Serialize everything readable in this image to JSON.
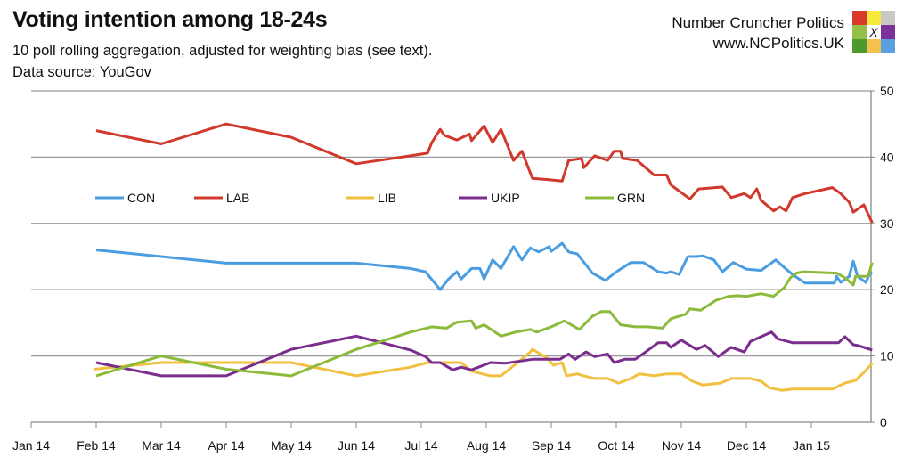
{
  "header": {
    "title": "Voting intention among 18-24s",
    "subtitle": "10 poll rolling aggregation, adjusted for weighting bias (see text).",
    "source": "Data source: YouGov",
    "brand_name": "Number Cruncher Politics",
    "brand_url": "www.NCPolitics.UK",
    "logo_mark": "X",
    "logo_colors": [
      "#d8392b",
      "#f5ea3a",
      "#c8c8c8",
      "#94c047",
      "#ffffff",
      "#7a3199",
      "#4b9a2e",
      "#f2c14e",
      "#5aa0e0"
    ]
  },
  "chart_data": {
    "type": "line",
    "title": "Voting intention among 18-24s",
    "xlabel": "",
    "ylabel": "",
    "ylim": [
      0,
      50
    ],
    "yticks": [
      0,
      10,
      20,
      30,
      40,
      50
    ],
    "y_axis_side": "right",
    "xticks": [
      "Jan 14",
      "Feb 14",
      "Mar 14",
      "Apr 14",
      "May 14",
      "Jun 14",
      "Jul 14",
      "Aug 14",
      "Sep 14",
      "Oct 14",
      "Nov 14",
      "Dec 14",
      "Jan 15"
    ],
    "xlim": [
      "2014-01-01",
      "2015-01-31"
    ],
    "grid": true,
    "legend_position": "upper-middle",
    "series": [
      {
        "name": "CON",
        "color": "#4a9de0",
        "points": [
          [
            "2014-02-01",
            26
          ],
          [
            "2014-03-01",
            25
          ],
          [
            "2014-04-01",
            24
          ],
          [
            "2014-05-01",
            24
          ],
          [
            "2014-06-01",
            24
          ],
          [
            "2014-06-26",
            23.2
          ],
          [
            "2014-07-03",
            22.7
          ],
          [
            "2014-07-10",
            20.0
          ],
          [
            "2014-07-14",
            21.6
          ],
          [
            "2014-07-18",
            22.7
          ],
          [
            "2014-07-20",
            21.6
          ],
          [
            "2014-07-25",
            23.2
          ],
          [
            "2014-07-29",
            23.2
          ],
          [
            "2014-07-31",
            21.6
          ],
          [
            "2014-08-04",
            24.5
          ],
          [
            "2014-08-08",
            23.2
          ],
          [
            "2014-08-14",
            26.5
          ],
          [
            "2014-08-18",
            24.5
          ],
          [
            "2014-08-22",
            26.3
          ],
          [
            "2014-08-26",
            25.7
          ],
          [
            "2014-08-31",
            26.5
          ],
          [
            "2014-09-01",
            25.8
          ],
          [
            "2014-09-06",
            27.0
          ],
          [
            "2014-09-09",
            25.7
          ],
          [
            "2014-09-13",
            25.4
          ],
          [
            "2014-09-20",
            22.5
          ],
          [
            "2014-09-26",
            21.4
          ],
          [
            "2014-10-01",
            22.7
          ],
          [
            "2014-10-08",
            24.1
          ],
          [
            "2014-10-14",
            24.1
          ],
          [
            "2014-10-21",
            22.7
          ],
          [
            "2014-10-25",
            22.5
          ],
          [
            "2014-10-27",
            22.7
          ],
          [
            "2014-10-31",
            22.3
          ],
          [
            "2014-11-04",
            25.0
          ],
          [
            "2014-11-08",
            25.0
          ],
          [
            "2014-11-11",
            25.1
          ],
          [
            "2014-11-16",
            24.5
          ],
          [
            "2014-11-20",
            22.7
          ],
          [
            "2014-11-25",
            24.1
          ],
          [
            "2014-12-01",
            23.1
          ],
          [
            "2014-12-08",
            22.9
          ],
          [
            "2014-12-15",
            24.5
          ],
          [
            "2014-12-20",
            23.1
          ],
          [
            "2014-12-23",
            22.3
          ],
          [
            "2014-12-29",
            21.0
          ],
          [
            "2015-01-12",
            21.0
          ],
          [
            "2015-01-13",
            22.0
          ],
          [
            "2015-01-15",
            21.1
          ],
          [
            "2015-01-19",
            22.0
          ],
          [
            "2015-01-21",
            24.3
          ],
          [
            "2015-01-23",
            22.0
          ],
          [
            "2015-01-27",
            21.1
          ],
          [
            "2015-01-29",
            22.5
          ],
          [
            "2015-01-30",
            22.5
          ]
        ]
      },
      {
        "name": "LAB",
        "color": "#d0392b",
        "points": [
          [
            "2014-02-01",
            44
          ],
          [
            "2014-03-01",
            42
          ],
          [
            "2014-04-01",
            45
          ],
          [
            "2014-05-01",
            43
          ],
          [
            "2014-06-01",
            39
          ],
          [
            "2014-06-26",
            40.2
          ],
          [
            "2014-07-04",
            40.6
          ],
          [
            "2014-07-06",
            42.2
          ],
          [
            "2014-07-10",
            44.2
          ],
          [
            "2014-07-12",
            43.3
          ],
          [
            "2014-07-18",
            42.6
          ],
          [
            "2014-07-24",
            43.5
          ],
          [
            "2014-07-25",
            42.5
          ],
          [
            "2014-07-31",
            44.7
          ],
          [
            "2014-08-04",
            42.2
          ],
          [
            "2014-08-08",
            44.2
          ],
          [
            "2014-08-14",
            39.5
          ],
          [
            "2014-08-18",
            40.9
          ],
          [
            "2014-08-23",
            36.8
          ],
          [
            "2014-08-31",
            36.6
          ],
          [
            "2014-09-06",
            36.4
          ],
          [
            "2014-09-09",
            39.5
          ],
          [
            "2014-09-15",
            39.8
          ],
          [
            "2014-09-16",
            38.4
          ],
          [
            "2014-09-21",
            40.2
          ],
          [
            "2014-09-27",
            39.5
          ],
          [
            "2014-09-30",
            40.9
          ],
          [
            "2014-10-03",
            40.9
          ],
          [
            "2014-10-04",
            39.8
          ],
          [
            "2014-10-11",
            39.5
          ],
          [
            "2014-10-19",
            37.3
          ],
          [
            "2014-10-25",
            37.3
          ],
          [
            "2014-10-27",
            35.8
          ],
          [
            "2014-11-05",
            33.7
          ],
          [
            "2014-11-09",
            35.2
          ],
          [
            "2014-11-20",
            35.5
          ],
          [
            "2014-11-24",
            33.9
          ],
          [
            "2014-11-30",
            34.5
          ],
          [
            "2014-12-03",
            33.9
          ],
          [
            "2014-12-06",
            35.2
          ],
          [
            "2014-12-08",
            33.5
          ],
          [
            "2014-12-14",
            31.9
          ],
          [
            "2014-12-17",
            32.5
          ],
          [
            "2014-12-20",
            31.9
          ],
          [
            "2014-12-23",
            33.9
          ],
          [
            "2014-12-29",
            34.5
          ],
          [
            "2015-01-11",
            35.4
          ],
          [
            "2015-01-15",
            34.5
          ],
          [
            "2015-01-19",
            33.2
          ],
          [
            "2015-01-21",
            31.7
          ],
          [
            "2015-01-26",
            32.8
          ],
          [
            "2015-01-30",
            30.1
          ]
        ]
      },
      {
        "name": "LIB",
        "color": "#f2c040",
        "points": [
          [
            "2014-01-31",
            8
          ],
          [
            "2014-03-01",
            9
          ],
          [
            "2014-04-01",
            9
          ],
          [
            "2014-05-01",
            9
          ],
          [
            "2014-06-01",
            7
          ],
          [
            "2014-06-26",
            8.3
          ],
          [
            "2014-07-04",
            9.0
          ],
          [
            "2014-07-12",
            9.0
          ],
          [
            "2014-07-20",
            9.0
          ],
          [
            "2014-07-25",
            7.7
          ],
          [
            "2014-08-03",
            7.0
          ],
          [
            "2014-08-08",
            7.0
          ],
          [
            "2014-08-16",
            9.0
          ],
          [
            "2014-08-22",
            10.6
          ],
          [
            "2014-08-23",
            11.0
          ],
          [
            "2014-08-30",
            9.7
          ],
          [
            "2014-09-02",
            8.6
          ],
          [
            "2014-09-06",
            9.0
          ],
          [
            "2014-09-08",
            7.0
          ],
          [
            "2014-09-13",
            7.3
          ],
          [
            "2014-09-16",
            7.0
          ],
          [
            "2014-09-21",
            6.6
          ],
          [
            "2014-09-27",
            6.6
          ],
          [
            "2014-10-02",
            5.9
          ],
          [
            "2014-10-08",
            6.6
          ],
          [
            "2014-10-12",
            7.3
          ],
          [
            "2014-10-19",
            7.0
          ],
          [
            "2014-10-25",
            7.3
          ],
          [
            "2014-11-01",
            7.3
          ],
          [
            "2014-11-06",
            6.2
          ],
          [
            "2014-11-11",
            5.6
          ],
          [
            "2014-11-19",
            5.9
          ],
          [
            "2014-11-24",
            6.6
          ],
          [
            "2014-12-03",
            6.6
          ],
          [
            "2014-12-08",
            6.2
          ],
          [
            "2014-12-12",
            5.2
          ],
          [
            "2014-12-18",
            4.8
          ],
          [
            "2014-12-23",
            5.0
          ],
          [
            "2015-01-11",
            5.0
          ],
          [
            "2015-01-17",
            5.9
          ],
          [
            "2015-01-22",
            6.3
          ],
          [
            "2015-01-26",
            7.5
          ],
          [
            "2015-01-30",
            8.9
          ]
        ]
      },
      {
        "name": "UKIP",
        "color": "#7b2d8e",
        "points": [
          [
            "2014-02-01",
            9
          ],
          [
            "2014-03-01",
            7
          ],
          [
            "2014-04-01",
            7
          ],
          [
            "2014-05-01",
            11
          ],
          [
            "2014-06-01",
            13
          ],
          [
            "2014-06-26",
            10.9
          ],
          [
            "2014-07-03",
            9.9
          ],
          [
            "2014-07-06",
            9.0
          ],
          [
            "2014-07-10",
            9.0
          ],
          [
            "2014-07-16",
            7.9
          ],
          [
            "2014-07-20",
            8.3
          ],
          [
            "2014-07-25",
            7.9
          ],
          [
            "2014-08-03",
            9.0
          ],
          [
            "2014-08-10",
            8.9
          ],
          [
            "2014-08-23",
            9.5
          ],
          [
            "2014-09-05",
            9.5
          ],
          [
            "2014-09-09",
            10.3
          ],
          [
            "2014-09-12",
            9.5
          ],
          [
            "2014-09-17",
            10.6
          ],
          [
            "2014-09-21",
            9.9
          ],
          [
            "2014-09-27",
            10.3
          ],
          [
            "2014-09-30",
            9.0
          ],
          [
            "2014-10-05",
            9.5
          ],
          [
            "2014-10-10",
            9.5
          ],
          [
            "2014-10-15",
            10.6
          ],
          [
            "2014-10-21",
            12.0
          ],
          [
            "2014-10-25",
            12.0
          ],
          [
            "2014-10-27",
            11.3
          ],
          [
            "2014-11-01",
            12.4
          ],
          [
            "2014-11-08",
            11.0
          ],
          [
            "2014-11-12",
            11.6
          ],
          [
            "2014-11-18",
            9.9
          ],
          [
            "2014-11-24",
            11.3
          ],
          [
            "2014-11-30",
            10.6
          ],
          [
            "2014-12-03",
            12.2
          ],
          [
            "2014-12-08",
            12.9
          ],
          [
            "2014-12-13",
            13.6
          ],
          [
            "2014-12-16",
            12.6
          ],
          [
            "2014-12-23",
            12.0
          ],
          [
            "2015-01-14",
            12.0
          ],
          [
            "2015-01-17",
            12.9
          ],
          [
            "2015-01-21",
            11.7
          ],
          [
            "2015-01-23",
            11.6
          ],
          [
            "2015-01-30",
            10.9
          ]
        ]
      },
      {
        "name": "GRN",
        "color": "#8cbb3c",
        "points": [
          [
            "2014-02-01",
            7
          ],
          [
            "2014-03-01",
            10
          ],
          [
            "2014-04-01",
            8
          ],
          [
            "2014-05-01",
            7
          ],
          [
            "2014-06-01",
            11
          ],
          [
            "2014-06-26",
            13.6
          ],
          [
            "2014-07-06",
            14.4
          ],
          [
            "2014-07-13",
            14.2
          ],
          [
            "2014-07-18",
            15.1
          ],
          [
            "2014-07-25",
            15.3
          ],
          [
            "2014-07-27",
            14.2
          ],
          [
            "2014-07-31",
            14.7
          ],
          [
            "2014-08-08",
            13.0
          ],
          [
            "2014-08-15",
            13.6
          ],
          [
            "2014-08-22",
            14.0
          ],
          [
            "2014-08-25",
            13.6
          ],
          [
            "2014-09-01",
            14.4
          ],
          [
            "2014-09-07",
            15.3
          ],
          [
            "2014-09-14",
            14.0
          ],
          [
            "2014-09-20",
            16.0
          ],
          [
            "2014-09-24",
            16.7
          ],
          [
            "2014-09-28",
            16.7
          ],
          [
            "2014-10-03",
            14.7
          ],
          [
            "2014-10-10",
            14.4
          ],
          [
            "2014-10-16",
            14.4
          ],
          [
            "2014-10-23",
            14.2
          ],
          [
            "2014-10-27",
            15.6
          ],
          [
            "2014-11-03",
            16.3
          ],
          [
            "2014-11-05",
            17.1
          ],
          [
            "2014-11-10",
            16.9
          ],
          [
            "2014-11-17",
            18.4
          ],
          [
            "2014-11-23",
            19.0
          ],
          [
            "2014-11-27",
            19.1
          ],
          [
            "2014-12-01",
            19.0
          ],
          [
            "2014-12-08",
            19.4
          ],
          [
            "2014-12-14",
            19.0
          ],
          [
            "2014-12-19",
            20.3
          ],
          [
            "2014-12-22",
            21.8
          ],
          [
            "2014-12-25",
            22.5
          ],
          [
            "2014-12-28",
            22.7
          ],
          [
            "2015-01-13",
            22.5
          ],
          [
            "2015-01-17",
            21.8
          ],
          [
            "2015-01-21",
            20.7
          ],
          [
            "2015-01-22",
            22.0
          ],
          [
            "2015-01-28",
            22.0
          ],
          [
            "2015-01-30",
            24.1
          ]
        ]
      }
    ]
  }
}
